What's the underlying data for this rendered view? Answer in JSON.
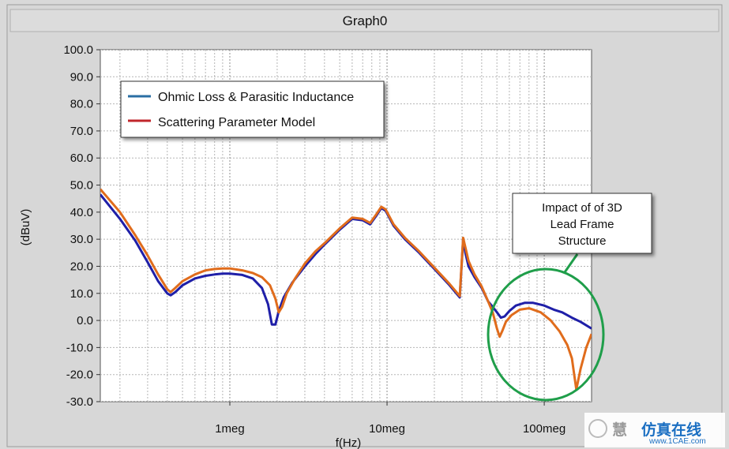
{
  "chart_data": {
    "type": "line",
    "title": "Graph0",
    "xlabel": "f(Hz)",
    "ylabel": "(dBuV)",
    "x_scale": "log",
    "x_unit": "Hz",
    "xlim": [
      150000,
      200000000
    ],
    "ylim": [
      -30,
      100
    ],
    "y_ticks": [
      -30,
      -20,
      -10,
      0,
      10,
      20,
      30,
      40,
      50,
      60,
      70,
      80,
      90,
      100
    ],
    "y_tick_labels": [
      "-30.0",
      "-20.0",
      "-10.0",
      "0.0",
      "10.0",
      "20.0",
      "30.0",
      "40.0",
      "50.0",
      "60.0",
      "70.0",
      "80.0",
      "90.0",
      "100.0"
    ],
    "x_ticks": [
      1000000,
      10000000,
      100000000
    ],
    "x_tick_labels": [
      "1meg",
      "10meg",
      "100meg"
    ],
    "grid": true,
    "legend_position": "top-left",
    "series": [
      {
        "name": "Ohmic Loss & Parasitic Inductance",
        "color": "#1f1fa8",
        "x": [
          150000,
          200000,
          250000,
          300000,
          350000,
          400000,
          420000,
          450000,
          500000,
          600000,
          700000,
          800000,
          900000,
          1000000,
          1200000,
          1400000,
          1600000,
          1750000,
          1850000,
          1950000,
          2050000,
          2200000,
          2500000,
          3000000,
          3500000,
          4000000,
          5000000,
          6000000,
          7000000,
          7800000,
          8500000,
          9200000,
          9800000,
          11000000,
          13000000,
          16000000,
          20000000,
          25000000,
          29000000,
          30500000,
          31500000,
          33000000,
          36000000,
          40000000,
          44000000,
          47000000,
          50000000,
          53000000,
          56000000,
          60000000,
          66000000,
          75000000,
          85000000,
          100000000,
          115000000,
          130000000,
          150000000,
          170000000,
          200000000
        ],
        "y": [
          46.5,
          37.5,
          29.5,
          21.5,
          14.5,
          10.0,
          9.3,
          10.5,
          13.0,
          15.5,
          16.5,
          17.0,
          17.3,
          17.3,
          16.8,
          15.5,
          12.0,
          6.0,
          -1.5,
          -1.5,
          3.5,
          8.5,
          14.0,
          20.0,
          24.5,
          28.0,
          33.5,
          37.5,
          37.0,
          35.5,
          38.5,
          41.5,
          40.5,
          35.0,
          30.0,
          25.0,
          19.0,
          13.0,
          8.5,
          30.0,
          25.0,
          20.0,
          16.0,
          12.0,
          7.0,
          5.0,
          3.0,
          1.0,
          1.5,
          3.5,
          5.5,
          6.5,
          6.5,
          5.5,
          4.0,
          3.0,
          1.0,
          -0.5,
          -3.0
        ]
      },
      {
        "name": "Scattering Parameter Model",
        "color": "#e06c1c",
        "x": [
          150000,
          200000,
          250000,
          300000,
          350000,
          400000,
          420000,
          450000,
          500000,
          600000,
          700000,
          800000,
          900000,
          1000000,
          1200000,
          1400000,
          1600000,
          1800000,
          1950000,
          2050000,
          2150000,
          2300000,
          2600000,
          3000000,
          3500000,
          4000000,
          5000000,
          6000000,
          7000000,
          7800000,
          8500000,
          9200000,
          9800000,
          11000000,
          13000000,
          16000000,
          20000000,
          25000000,
          29000000,
          30500000,
          31500000,
          33000000,
          36000000,
          40000000,
          44000000,
          47000000,
          50000000,
          52000000,
          54000000,
          57000000,
          62000000,
          70000000,
          80000000,
          95000000,
          110000000,
          125000000,
          140000000,
          150000000,
          155000000,
          160000000,
          170000000,
          185000000,
          200000000
        ],
        "y": [
          48.5,
          40.0,
          31.5,
          24.0,
          17.0,
          11.5,
          10.5,
          12.0,
          14.5,
          17.0,
          18.5,
          19.0,
          19.2,
          19.2,
          18.5,
          17.5,
          16.0,
          13.0,
          8.0,
          3.0,
          5.0,
          10.0,
          15.5,
          21.0,
          25.5,
          28.5,
          34.0,
          38.0,
          37.5,
          36.0,
          39.0,
          42.0,
          41.0,
          35.5,
          30.5,
          25.5,
          19.5,
          13.5,
          9.0,
          30.5,
          27.0,
          22.0,
          17.0,
          12.5,
          7.0,
          3.0,
          -3.0,
          -6.0,
          -4.0,
          -0.5,
          2.0,
          4.0,
          4.5,
          3.0,
          0.0,
          -4.0,
          -9.0,
          -14.0,
          -20.0,
          -25.5,
          -18.0,
          -10.0,
          -5.0
        ]
      }
    ],
    "annotation": {
      "lines": [
        "Impact of of 3D",
        "Lead Frame",
        "Structure"
      ],
      "circle_color": "#1f9e4a"
    }
  },
  "watermark": {
    "text_cn": "仿真在线",
    "text_site": "www.1CAE.com",
    "text_left": "慧"
  }
}
